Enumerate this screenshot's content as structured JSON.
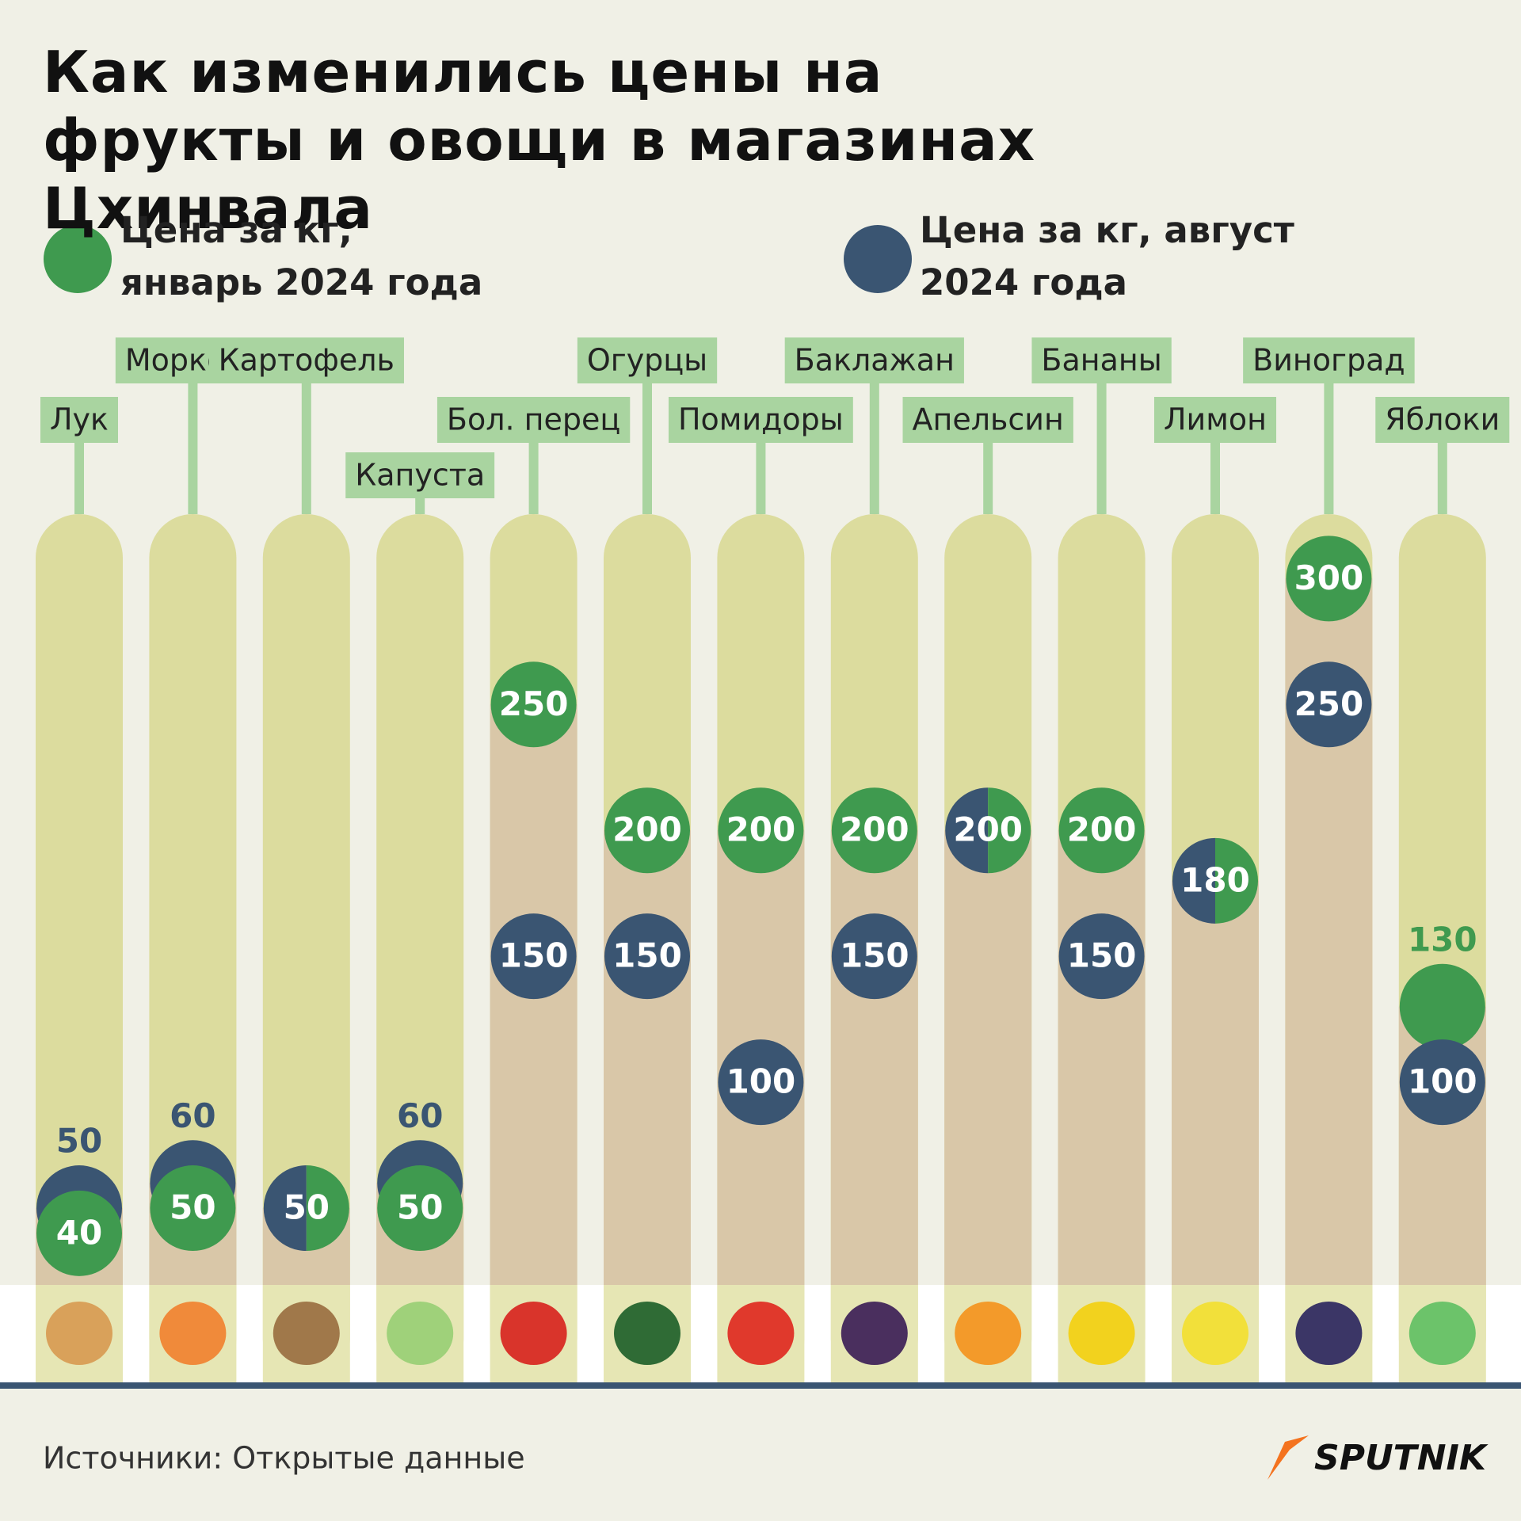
{
  "chart_data": {
    "type": "dot",
    "title": "Как изменились цены на фрукты и овощи в магазинах Цхинвала",
    "categories": [
      "Лук",
      "Морковь",
      "Картофель",
      "Капуста",
      "Бол. перец",
      "Огурцы",
      "Помидоры",
      "Баклажан",
      "Апельсин",
      "Бананы",
      "Лимон",
      "Виноград",
      "Яблоки"
    ],
    "series": [
      {
        "name": "Цена за кг, январь 2024 года",
        "color": "#3f9a4f",
        "values": [
          40,
          50,
          50,
          50,
          250,
          200,
          200,
          200,
          200,
          200,
          180,
          300,
          130
        ]
      },
      {
        "name": "Цена за кг, август 2024 года",
        "color": "#3a5572",
        "values": [
          50,
          60,
          50,
          60,
          150,
          150,
          100,
          150,
          200,
          150,
          180,
          250,
          100
        ]
      }
    ],
    "ylim": [
      0,
      330
    ],
    "source": "Источники: Открытые данные",
    "logo": "SPUTNIK"
  }
}
